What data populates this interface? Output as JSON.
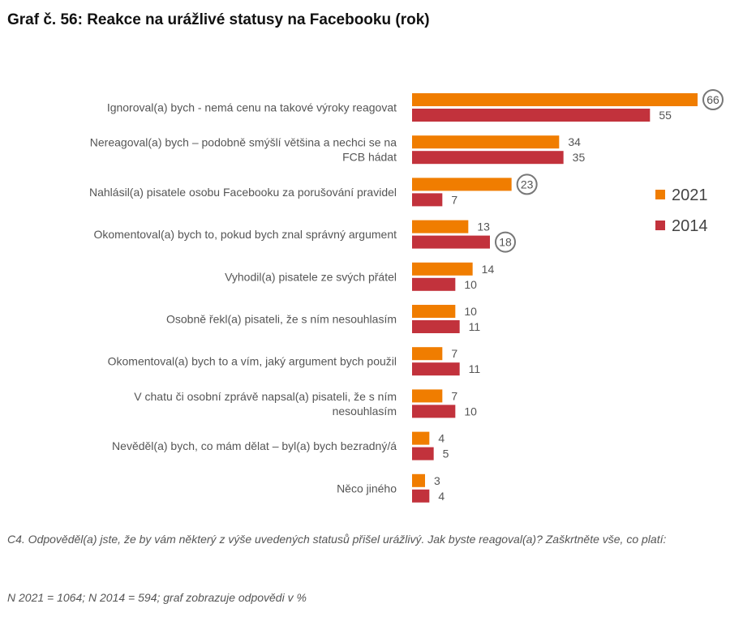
{
  "title": "Graf č. 56: Reakce na urážlivé statusy na Facebooku (rok)",
  "chart_data": {
    "type": "bar",
    "orientation": "horizontal",
    "categories": [
      [
        "Ignoroval(a) bych - nemá cenu na takové výroky reagovat"
      ],
      [
        "Nereagoval(a) bych – podobně  smýšlí  většina a nechci se na",
        "FCB hádat"
      ],
      [
        "Nahlásil(a) pisatele osobu Facebooku za porušování pravidel"
      ],
      [
        "Okomentoval(a) bych to, pokud bych znal správný argument"
      ],
      [
        "Vyhodil(a) pisatele ze svých přátel"
      ],
      [
        "Osobně řekl(a) pisateli, že s ním nesouhlasím"
      ],
      [
        "Okomentoval(a) bych to a vím, jaký argument bych použil"
      ],
      [
        "V chatu či osobní zprávě napsal(a) pisateli, že s ním",
        "nesouhlasím"
      ],
      [
        "Nevěděl(a)  bych, co mám dělat – byl(a) bych bezradný/á"
      ],
      [
        "Něco jiného"
      ]
    ],
    "series": [
      {
        "name": "2021",
        "color": "#F07D00",
        "values": [
          66,
          34,
          23,
          13,
          14,
          10,
          7,
          7,
          4,
          3
        ],
        "circled": [
          0,
          2
        ]
      },
      {
        "name": "2014",
        "color": "#C2323C",
        "values": [
          55,
          35,
          7,
          18,
          10,
          11,
          11,
          10,
          5,
          4
        ],
        "circled": [
          3
        ]
      }
    ],
    "xlim": [
      0,
      70
    ],
    "grid": false,
    "legend_position": "right"
  },
  "footnote_question": "C4. Odpověděl(a) jste, že by vám některý z výše uvedených statusů přišel urážlivý. Jak byste reagoval(a)? Zaškrtněte vše, co platí:",
  "footnote_sample": "N 2021 = 1064; N 2014 = 594; graf zobrazuje odpovědi v %"
}
